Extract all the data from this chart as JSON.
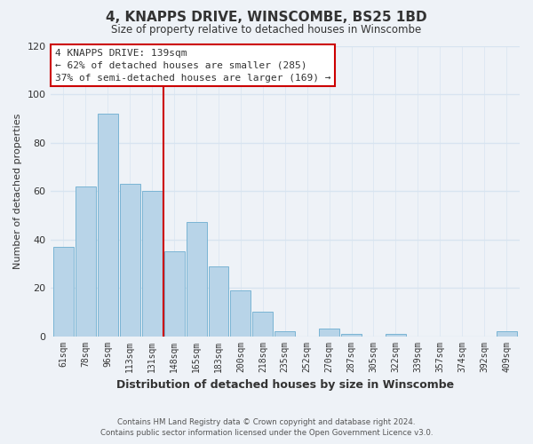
{
  "title": "4, KNAPPS DRIVE, WINSCOMBE, BS25 1BD",
  "subtitle": "Size of property relative to detached houses in Winscombe",
  "xlabel": "Distribution of detached houses by size in Winscombe",
  "ylabel": "Number of detached properties",
  "bar_labels": [
    "61sqm",
    "78sqm",
    "96sqm",
    "113sqm",
    "131sqm",
    "148sqm",
    "165sqm",
    "183sqm",
    "200sqm",
    "218sqm",
    "235sqm",
    "252sqm",
    "270sqm",
    "287sqm",
    "305sqm",
    "322sqm",
    "339sqm",
    "357sqm",
    "374sqm",
    "392sqm",
    "409sqm"
  ],
  "bar_values": [
    37,
    62,
    92,
    63,
    60,
    35,
    47,
    29,
    19,
    10,
    2,
    0,
    3,
    1,
    0,
    1,
    0,
    0,
    0,
    0,
    2
  ],
  "bar_color": "#b8d4e8",
  "bar_edge_color": "#7ab4d4",
  "ylim": [
    0,
    120
  ],
  "yticks": [
    0,
    20,
    40,
    60,
    80,
    100,
    120
  ],
  "vline_color": "#cc0000",
  "annotation_title": "4 KNAPPS DRIVE: 139sqm",
  "annotation_line1": "← 62% of detached houses are smaller (285)",
  "annotation_line2": "37% of semi-detached houses are larger (169) →",
  "annotation_box_color": "#ffffff",
  "annotation_box_edge": "#cc0000",
  "footer_line1": "Contains HM Land Registry data © Crown copyright and database right 2024.",
  "footer_line2": "Contains public sector information licensed under the Open Government Licence v3.0.",
  "background_color": "#eef2f7",
  "grid_color": "#d8e4f0"
}
